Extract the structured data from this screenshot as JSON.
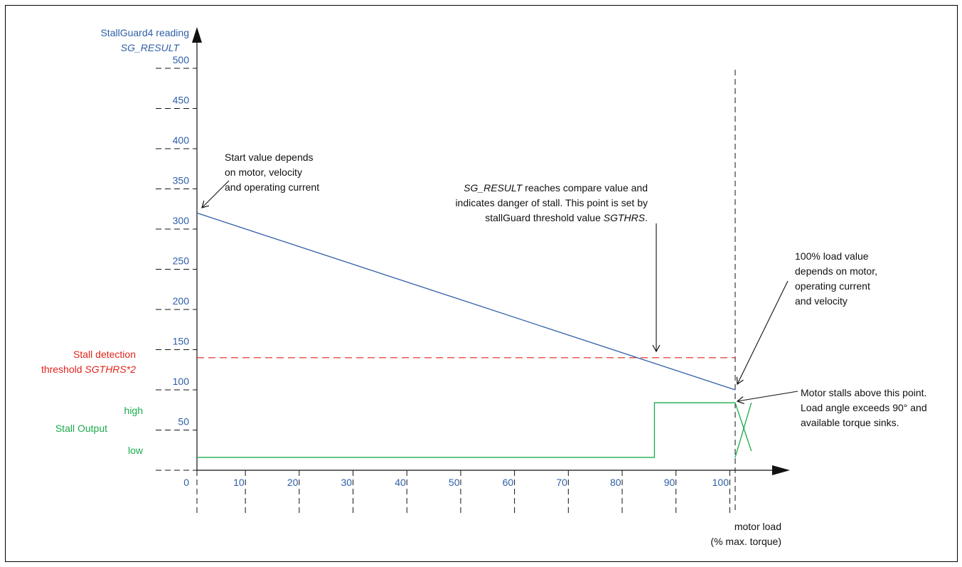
{
  "chart_data": {
    "type": "line",
    "title": "",
    "ylabel": "StallGuard4 reading",
    "ylabel_sub": "SG_RESULT",
    "xlabel": "motor load",
    "xlabel_sub": "(% max. torque)",
    "xlim": [
      0,
      110
    ],
    "ylim": [
      0,
      530
    ],
    "x_ticks": [
      "0",
      "10",
      "20",
      "30",
      "40",
      "50",
      "60",
      "70",
      "80",
      "90",
      "100"
    ],
    "x_tick_values": [
      0,
      10,
      20,
      30,
      40,
      50,
      60,
      70,
      80,
      90,
      100
    ],
    "y_ticks": [
      "50",
      "100",
      "150",
      "200",
      "250",
      "300",
      "350",
      "400",
      "450",
      "500"
    ],
    "y_tick_values": [
      50,
      100,
      150,
      200,
      250,
      300,
      350,
      400,
      450,
      500
    ],
    "series": [
      {
        "key": "sg_result",
        "color": "#2e5fa6",
        "x": [
          0,
          100
        ],
        "y": [
          320,
          100
        ]
      },
      {
        "key": "stall_output",
        "color": "#1aab4b",
        "x": [
          0,
          85,
          85,
          100
        ],
        "y": [
          16,
          16,
          84,
          84
        ],
        "crossed_tail": [
          [
            100,
            84,
            103,
            24
          ],
          [
            100,
            16,
            103,
            84
          ]
        ]
      }
    ],
    "threshold": {
      "y": 140,
      "x_end": 100,
      "color": "#e2231a",
      "label_line1": "Stall detection",
      "label_line2_prefix": "threshold ",
      "label_line2_italic": "SGTHRS*2"
    },
    "stall_levels": {
      "high": "high",
      "low": "low",
      "label": "Stall Output",
      "high_value": 84,
      "low_value": 16
    },
    "vertical_marker_x": 100,
    "annotations": {
      "start_value": [
        "Start value depends",
        "on motor, velocity",
        "and operating current"
      ],
      "compare_line1_italic": "SG_RESULT",
      "compare_line1_rest": " reaches compare value and",
      "compare_line2": "indicates danger of stall. This point is set by",
      "compare_line3_prefix": "stallGuard threshold value ",
      "compare_line3_italic": "SGTHRS",
      "compare_line3_suffix": ".",
      "full_load": [
        "100% load value",
        "depends on motor,",
        "operating current",
        "and velocity"
      ],
      "stall_note": [
        "Motor stalls above this point.",
        "Load angle exceeds 90° and",
        "available torque sinks."
      ]
    }
  }
}
